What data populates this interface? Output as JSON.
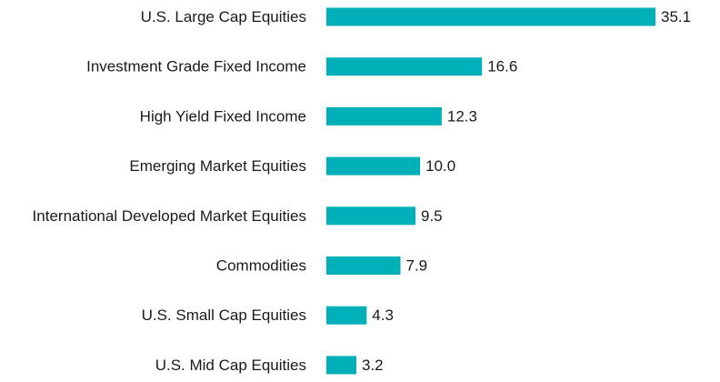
{
  "chart_data": {
    "type": "bar",
    "orientation": "horizontal",
    "categories": [
      "U.S. Large Cap Equities",
      "Investment Grade Fixed Income",
      "High Yield Fixed Income",
      "Emerging Market Equities",
      "International Developed Market Equities",
      "Commodities",
      "U.S. Small Cap Equities",
      "U.S. Mid Cap Equities"
    ],
    "values": [
      35.1,
      16.6,
      12.3,
      10.0,
      9.5,
      7.9,
      4.3,
      3.2
    ],
    "value_labels": [
      "35.1",
      "16.6",
      "12.3",
      "10.0",
      "9.5",
      "7.9",
      "4.3",
      "3.2"
    ],
    "title": "",
    "xlabel": "",
    "ylabel": "",
    "xlim": [
      0,
      35.1
    ],
    "grid": false,
    "legend": "none",
    "colors": {
      "bar": "#00b0b9",
      "text": "#1a1a1a",
      "background": "#ffffff"
    }
  }
}
